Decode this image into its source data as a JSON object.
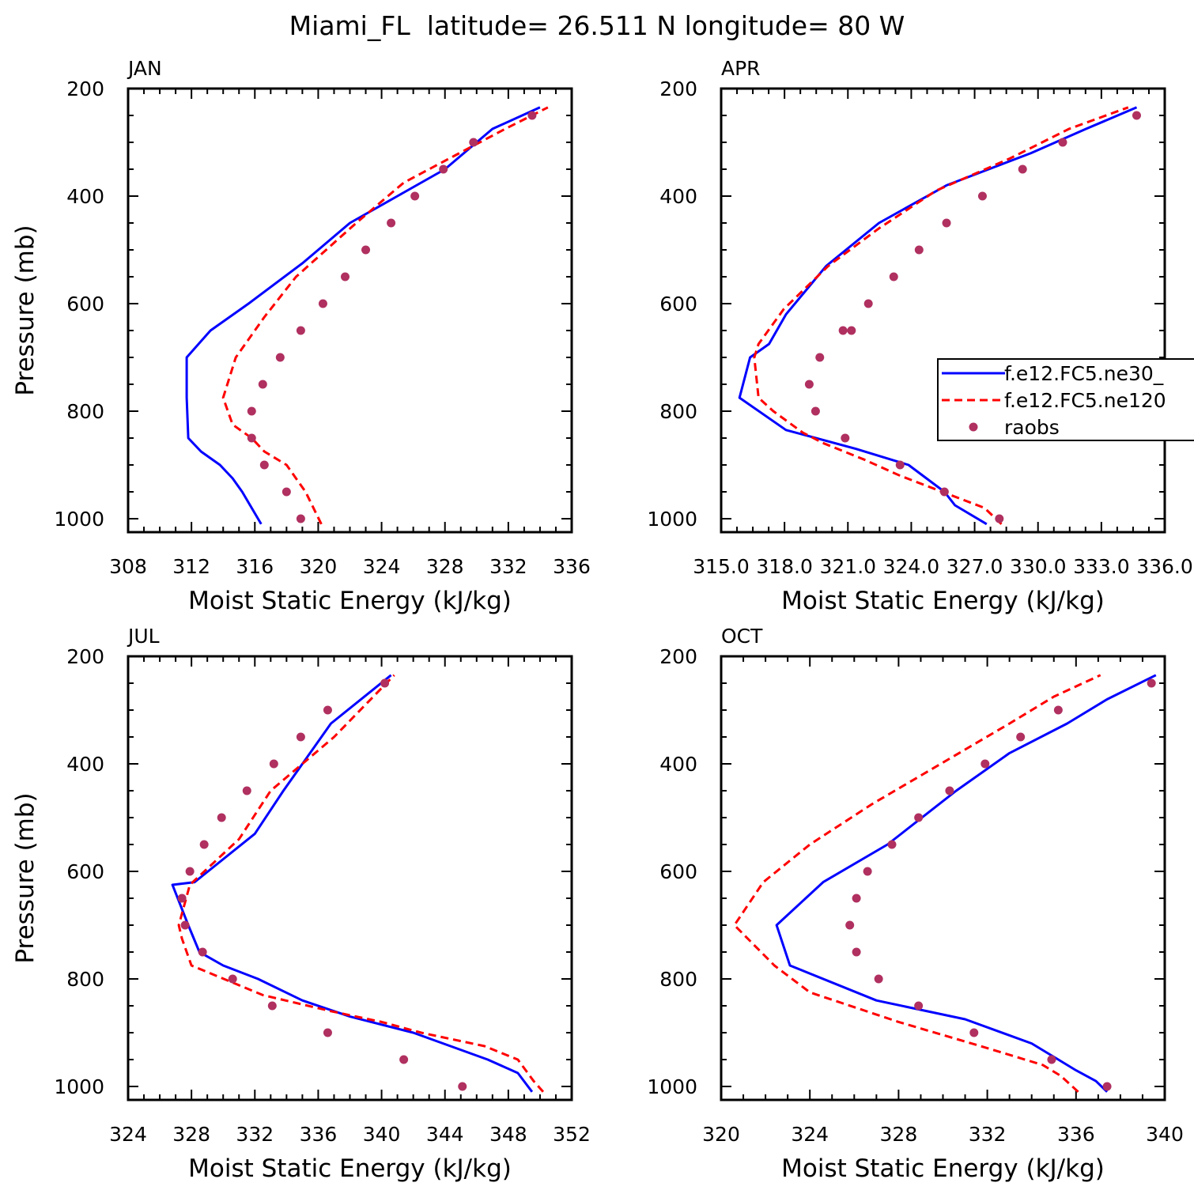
{
  "figure": {
    "title": "Miami_FL  latitude= 26.511 N longitude= 80 W"
  },
  "chart_data": [
    {
      "type": "line",
      "panel_label": "JAN",
      "xlabel": "Moist Static Energy (kJ/kg)",
      "ylabel": "Pressure (mb)",
      "xlim": [
        308,
        336
      ],
      "ylim": [
        1000,
        200
      ],
      "xticks": [
        "308",
        "312",
        "316",
        "320",
        "324",
        "328",
        "332",
        "336"
      ],
      "yticks": [
        "200",
        "400",
        "600",
        "800",
        "1000"
      ],
      "series": [
        {
          "name": "f.e12.FC5.ne30_",
          "color": "#0000ff",
          "dash": "solid",
          "x": [
            316.4,
            315.2,
            314.6,
            313.8,
            312.6,
            311.8,
            311.7,
            311.7,
            313.2,
            315.6,
            319.0,
            322.0,
            325.0,
            328.0,
            331.0,
            334.0
          ],
          "y": [
            1010,
            950,
            925,
            900,
            875,
            850,
            775,
            700,
            650,
            600,
            525,
            450,
            400,
            350,
            275,
            235
          ]
        },
        {
          "name": "f.e12.FC5.ne120",
          "color": "#ff0000",
          "dash": "dashed",
          "x": [
            320.2,
            319.2,
            318.0,
            316.6,
            315.8,
            314.6,
            314.0,
            314.8,
            316.6,
            318.6,
            322.4,
            325.4,
            328.6,
            331.8,
            334.5
          ],
          "y": [
            1010,
            950,
            900,
            875,
            850,
            825,
            775,
            700,
            625,
            550,
            450,
            375,
            325,
            275,
            235
          ]
        },
        {
          "name": "raobs",
          "color": "#b03060",
          "dash": "dots",
          "x": [
            318.9,
            318.0,
            316.6,
            315.8,
            315.8,
            316.5,
            317.6,
            318.9,
            320.3,
            321.7,
            323.0,
            324.6,
            326.1,
            327.9,
            329.8,
            333.5
          ],
          "y": [
            1000,
            950,
            900,
            850,
            800,
            750,
            700,
            650,
            600,
            550,
            500,
            450,
            400,
            350,
            300,
            250
          ]
        }
      ]
    },
    {
      "type": "line",
      "panel_label": "APR",
      "xlabel": "Moist Static Energy (kJ/kg)",
      "ylabel": "",
      "xlim": [
        315.03,
        336.03
      ],
      "ylim": [
        1000,
        200
      ],
      "xticks": [
        "315.0",
        "318.0",
        "321.0",
        "324.0",
        "327.0",
        "330.0",
        "333.0",
        "336.0"
      ],
      "yticks": [
        "200",
        "400",
        "600",
        "800",
        "1000"
      ],
      "legend": {
        "placement": "right",
        "entries": [
          "f.e12.FC5.ne30_",
          "f.e12.FC5.ne120",
          "raobs"
        ]
      },
      "series": [
        {
          "name": "f.e12.FC5.ne30_",
          "color": "#0000ff",
          "dash": "solid",
          "x": [
            327.6,
            326.1,
            325.6,
            323.9,
            321.4,
            318.1,
            315.9,
            316.4,
            317.3,
            318.1,
            320.0,
            322.5,
            325.7,
            329.7,
            332.3,
            334.7
          ],
          "y": [
            1010,
            975,
            950,
            900,
            870,
            835,
            775,
            700,
            675,
            620,
            530,
            450,
            380,
            320,
            275,
            235
          ]
        },
        {
          "name": "f.e12.FC5.ne120",
          "color": "#ff0000",
          "dash": "dashed",
          "x": [
            328.3,
            327.5,
            325.5,
            323.5,
            321.8,
            319.9,
            318.9,
            317.5,
            316.8,
            316.6,
            316.8,
            318.0,
            320.1,
            322.5,
            325.2,
            328.7,
            331.5,
            334.3
          ],
          "y": [
            1010,
            980,
            950,
            920,
            890,
            860,
            840,
            800,
            775,
            700,
            675,
            610,
            530,
            460,
            390,
            330,
            275,
            235
          ]
        },
        {
          "name": "raobs",
          "color": "#b03060",
          "dash": "dots",
          "x": [
            328.2,
            325.6,
            323.5,
            320.9,
            319.5,
            319.2,
            319.7,
            320.8,
            321.2,
            322.0,
            323.2,
            324.4,
            325.7,
            327.4,
            329.3,
            331.2,
            334.7
          ],
          "y": [
            1000,
            950,
            900,
            850,
            800,
            750,
            700,
            650,
            650,
            600,
            550,
            500,
            450,
            400,
            350,
            300,
            250
          ]
        }
      ]
    },
    {
      "type": "line",
      "panel_label": "JUL",
      "xlabel": "Moist Static Energy (kJ/kg)",
      "ylabel": "Pressure (mb)",
      "xlim": [
        324,
        352
      ],
      "ylim": [
        1000,
        200
      ],
      "xticks": [
        "324",
        "328",
        "332",
        "336",
        "340",
        "344",
        "348",
        "352"
      ],
      "yticks": [
        "200",
        "400",
        "600",
        "800",
        "1000"
      ],
      "series": [
        {
          "name": "f.e12.FC5.ne30_",
          "color": "#0000ff",
          "dash": "solid",
          "x": [
            349.5,
            348.6,
            346.7,
            342.0,
            338.0,
            335.0,
            332.2,
            330.0,
            328.5,
            327.8,
            326.8,
            328.2,
            332.0,
            333.8,
            336.8,
            340.6
          ],
          "y": [
            1010,
            975,
            950,
            900,
            870,
            840,
            800,
            775,
            750,
            700,
            625,
            620,
            530,
            450,
            325,
            235
          ]
        },
        {
          "name": "f.e12.FC5.ne120",
          "color": "#ff0000",
          "dash": "dashed",
          "x": [
            350.2,
            349.6,
            348.6,
            346.5,
            342.5,
            340.0,
            336.8,
            332.5,
            328.0,
            327.4,
            327.2,
            327.9,
            331.0,
            333.0,
            337.0,
            340.8
          ],
          "y": [
            1010,
            990,
            950,
            925,
            900,
            880,
            860,
            830,
            775,
            725,
            700,
            625,
            540,
            450,
            350,
            235
          ]
        },
        {
          "name": "raobs",
          "color": "#b03060",
          "dash": "dots",
          "x": [
            345.1,
            341.4,
            336.6,
            333.1,
            330.6,
            328.7,
            327.6,
            327.4,
            327.9,
            328.8,
            329.9,
            331.5,
            333.2,
            334.9,
            336.6,
            340.2
          ],
          "y": [
            1000,
            950,
            900,
            850,
            800,
            750,
            700,
            650,
            600,
            550,
            500,
            450,
            400,
            350,
            300,
            250
          ]
        }
      ]
    },
    {
      "type": "line",
      "panel_label": "OCT",
      "xlabel": "Moist Static Energy (kJ/kg)",
      "ylabel": "",
      "xlim": [
        320,
        340
      ],
      "ylim": [
        1000,
        200
      ],
      "xticks": [
        "320",
        "324",
        "328",
        "332",
        "336",
        "340"
      ],
      "yticks": [
        "200",
        "400",
        "600",
        "800",
        "1000"
      ],
      "series": [
        {
          "name": "f.e12.FC5.ne30_",
          "color": "#0000ff",
          "dash": "solid",
          "x": [
            337.4,
            336.9,
            336.0,
            335.2,
            334.0,
            331.0,
            327.0,
            323.1,
            322.5,
            324.6,
            327.5,
            330.6,
            333.0,
            335.6,
            337.4,
            339.6
          ],
          "y": [
            1010,
            990,
            970,
            950,
            920,
            875,
            840,
            775,
            700,
            620,
            550,
            450,
            380,
            325,
            280,
            235
          ]
        },
        {
          "name": "f.e12.FC5.ne120",
          "color": "#ff0000",
          "dash": "dashed",
          "x": [
            336.1,
            335.3,
            334.5,
            331.7,
            328.0,
            324.0,
            322.4,
            320.6,
            321.9,
            324.0,
            326.8,
            329.9,
            333.0,
            335.0,
            337.1
          ],
          "y": [
            1010,
            980,
            960,
            925,
            880,
            825,
            775,
            700,
            620,
            550,
            475,
            400,
            325,
            275,
            235
          ]
        },
        {
          "name": "raobs",
          "color": "#b03060",
          "dash": "dots",
          "x": [
            337.4,
            334.9,
            331.4,
            328.9,
            327.1,
            326.1,
            325.8,
            326.1,
            326.6,
            327.7,
            328.9,
            330.3,
            331.9,
            333.5,
            335.2,
            339.4
          ],
          "y": [
            1000,
            950,
            900,
            850,
            800,
            750,
            700,
            650,
            600,
            550,
            500,
            450,
            400,
            350,
            300,
            250
          ]
        }
      ]
    }
  ]
}
